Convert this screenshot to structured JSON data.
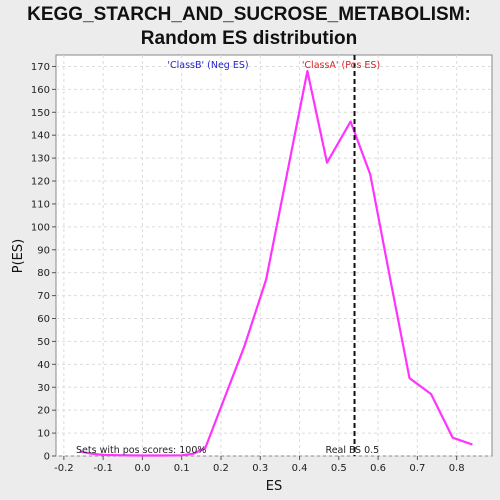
{
  "chart_data": {
    "type": "line",
    "title_line1": "KEGG_STARCH_AND_SUCROSE_METABOLISM:",
    "title_line2": "Random ES distribution",
    "xlabel": "ES",
    "ylabel": "P(ES)",
    "xlim": [
      -0.22,
      0.89
    ],
    "ylim": [
      0,
      175
    ],
    "xticks": [
      "-0.2",
      "-0.1",
      "0.0",
      "0.1",
      "0.2",
      "0.3",
      "0.4",
      "0.5",
      "0.6",
      "0.7",
      "0.8"
    ],
    "yticks": [
      "0",
      "10",
      "20",
      "30",
      "40",
      "50",
      "60",
      "70",
      "80",
      "90",
      "100",
      "110",
      "120",
      "130",
      "140",
      "150",
      "160",
      "170"
    ],
    "grid": true,
    "series": [
      {
        "color": "#ff33ff",
        "x": [
          -0.16,
          -0.13,
          -0.1,
          -0.05,
          0.0,
          0.05,
          0.1,
          0.13,
          0.16,
          0.26,
          0.315,
          0.42,
          0.47,
          0.53,
          0.58,
          0.63,
          0.68,
          0.735,
          0.79,
          0.84
        ],
        "y": [
          2,
          1,
          0.5,
          0.3,
          0.2,
          0.2,
          0.3,
          1,
          3.5,
          48,
          77,
          168,
          128,
          146,
          123,
          78,
          34,
          27,
          8,
          5
        ]
      }
    ],
    "real_es": 0.54,
    "real_es_label": "Real ES 0.5",
    "class_b_label": "'ClassB' (Neg ES)",
    "class_a_label": "'ClassA' (Pos ES)",
    "class_b_color": "#2222cc",
    "class_a_color": "#dd2222",
    "pos_scores_label": "Sets with pos scores: 100%"
  }
}
